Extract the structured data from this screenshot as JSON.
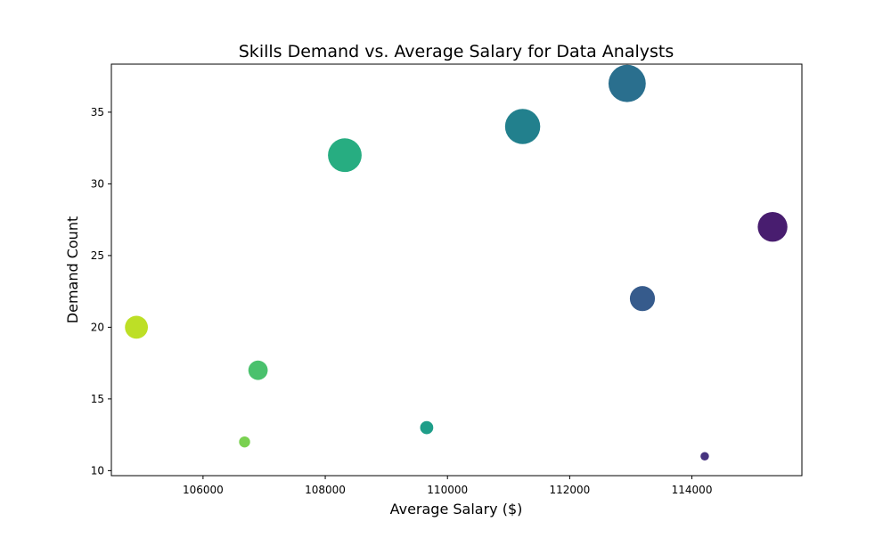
{
  "chart_data": {
    "type": "scatter",
    "title": "Skills Demand vs. Average Salary for Data Analysts",
    "xlabel": "Average Salary ($)",
    "ylabel": "Demand Count",
    "xlim": [
      104500,
      115800
    ],
    "ylim": [
      9.65,
      38.35
    ],
    "xticks": [
      106000,
      108000,
      110000,
      112000,
      114000
    ],
    "xtick_labels": [
      "106000",
      "108000",
      "110000",
      "112000",
      "114000"
    ],
    "yticks": [
      10,
      15,
      20,
      25,
      30,
      35
    ],
    "ytick_labels": [
      "10",
      "15",
      "20",
      "25",
      "30",
      "35"
    ],
    "grid": false,
    "legend": "none",
    "points": [
      {
        "x": 112940,
        "y": 37,
        "size": 37,
        "color": "#2a6f8e"
      },
      {
        "x": 111230,
        "y": 34,
        "size": 34,
        "color": "#22808d"
      },
      {
        "x": 108320,
        "y": 32,
        "size": 32,
        "color": "#27ad81"
      },
      {
        "x": 115320,
        "y": 27,
        "size": 27,
        "color": "#481d6f"
      },
      {
        "x": 113190,
        "y": 22,
        "size": 22,
        "color": "#365b8c"
      },
      {
        "x": 104910,
        "y": 20,
        "size": 20,
        "color": "#bddf26"
      },
      {
        "x": 106900,
        "y": 17,
        "size": 17,
        "color": "#4ac16d"
      },
      {
        "x": 109660,
        "y": 13,
        "size": 13,
        "color": "#1f9e89"
      },
      {
        "x": 106680,
        "y": 12,
        "size": 12,
        "color": "#7ad151"
      },
      {
        "x": 114210,
        "y": 11,
        "size": 11,
        "color": "#46337f"
      }
    ]
  }
}
